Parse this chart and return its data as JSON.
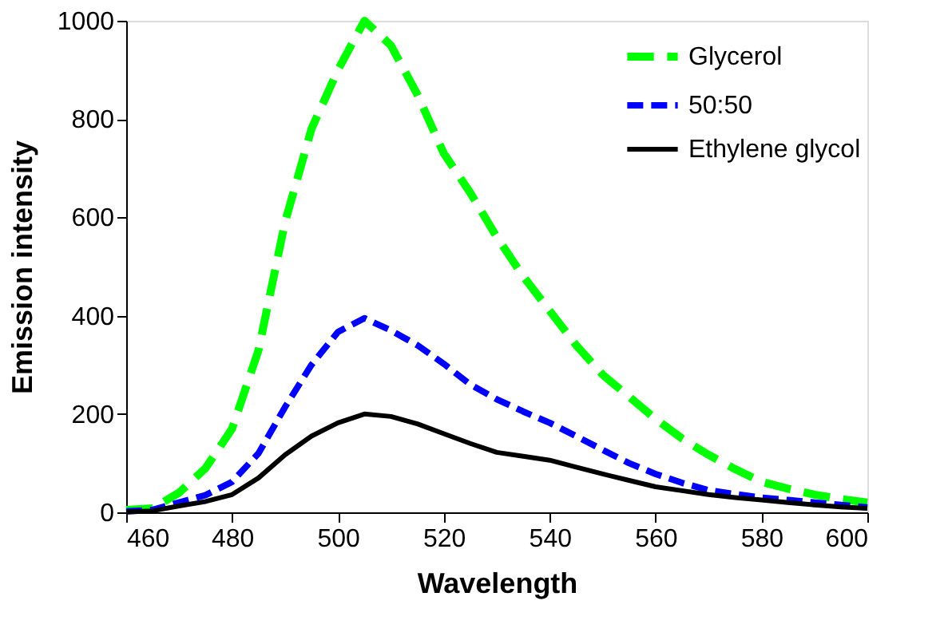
{
  "chart_data": {
    "type": "line",
    "xlabel": "Wavelength",
    "ylabel": "Emission intensity",
    "x": [
      460,
      465,
      470,
      475,
      480,
      485,
      490,
      495,
      500,
      505,
      510,
      515,
      520,
      525,
      530,
      535,
      540,
      545,
      550,
      555,
      560,
      565,
      570,
      575,
      580,
      585,
      590,
      595,
      600
    ],
    "series": [
      {
        "name": "Glycerol",
        "color": "#00ff00",
        "line_style": "dashed",
        "values": [
          5,
          8,
          40,
          90,
          170,
          330,
          590,
          780,
          900,
          1000,
          950,
          850,
          730,
          650,
          560,
          480,
          410,
          340,
          280,
          235,
          190,
          150,
          117,
          88,
          62,
          48,
          36,
          27,
          20
        ]
      },
      {
        "name": "50:50",
        "color": "#0000ff",
        "line_style": "dashed",
        "values": [
          2,
          5,
          20,
          35,
          62,
          120,
          214,
          300,
          367,
          395,
          370,
          340,
          302,
          260,
          230,
          205,
          182,
          155,
          127,
          100,
          78,
          60,
          45,
          37,
          30,
          25,
          20,
          15,
          10
        ]
      },
      {
        "name": "Ethylene glycol",
        "color": "#000000",
        "line_style": "solid",
        "values": [
          1,
          3,
          13,
          22,
          36,
          70,
          117,
          155,
          182,
          200,
          195,
          180,
          160,
          140,
          122,
          114,
          106,
          92,
          78,
          65,
          52,
          44,
          36,
          30,
          25,
          20,
          15,
          11,
          8
        ]
      }
    ],
    "xlim": [
      460,
      600
    ],
    "xticks": [
      460,
      480,
      500,
      520,
      540,
      560,
      580,
      600
    ],
    "ylim": [
      0,
      1000
    ],
    "yticks": [
      0,
      200,
      400,
      600,
      800,
      1000
    ],
    "grid": false,
    "legend": "top right",
    "marker": "none"
  }
}
